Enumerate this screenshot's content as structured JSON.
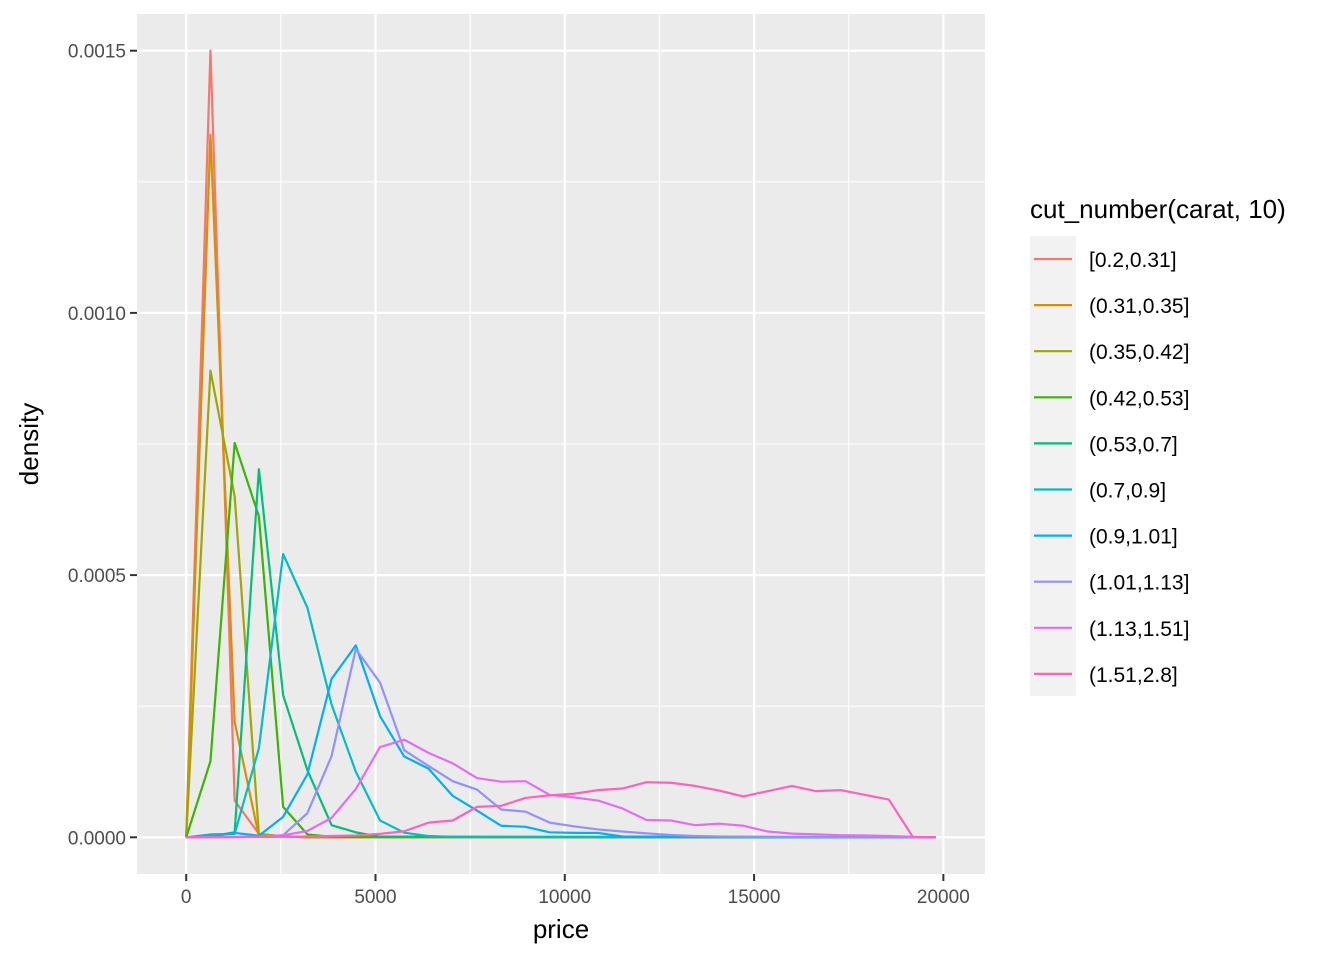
{
  "chart_data": {
    "type": "line",
    "xlabel": "price",
    "ylabel": "density",
    "xlim": [
      -1300,
      21100
    ],
    "ylim": [
      -7e-05,
      0.00157
    ],
    "x_ticks": [
      0,
      5000,
      10000,
      15000,
      20000
    ],
    "x_tick_labels": [
      "0",
      "5000",
      "10000",
      "15000",
      "20000"
    ],
    "y_ticks": [
      0,
      0.0005,
      0.001,
      0.0015
    ],
    "y_tick_labels": [
      "0.0000",
      "0.0005",
      "0.0010",
      "0.0015"
    ],
    "grid": true,
    "legend": {
      "title": "cut_number(carat, 10)",
      "position": "right"
    },
    "series": [
      {
        "name": "[0.2,0.31]",
        "color": "#F8766D",
        "x": [
          0,
          640,
          1280,
          1920,
          2560,
          3200,
          19800
        ],
        "y": [
          0,
          0.0015,
          7e-05,
          6.5e-06,
          1.5e-06,
          0,
          0
        ]
      },
      {
        "name": "(0.31,0.35]",
        "color": "#D89000",
        "x": [
          0,
          640,
          1280,
          1920,
          2560,
          3200,
          19800
        ],
        "y": [
          0,
          0.00134,
          0.00022,
          1.7e-06,
          1.8e-06,
          0,
          0
        ]
      },
      {
        "name": "(0.35,0.42]",
        "color": "#A3A500",
        "x": [
          0,
          640,
          1280,
          1920,
          2560,
          3200,
          19800
        ],
        "y": [
          0,
          0.00089,
          0.00065,
          6e-06,
          2e-06,
          0,
          0
        ]
      },
      {
        "name": "(0.42,0.53]",
        "color": "#39B600",
        "x": [
          0,
          640,
          1280,
          1920,
          2560,
          3200,
          3840,
          19800
        ],
        "y": [
          0,
          0.000145,
          0.000752,
          0.000612,
          5.8e-05,
          5.5e-06,
          1e-06,
          0
        ]
      },
      {
        "name": "(0.53,0.7]",
        "color": "#00BF7D",
        "x": [
          0,
          640,
          1280,
          1920,
          2560,
          3200,
          3840,
          4480,
          5120,
          19800
        ],
        "y": [
          0,
          1.8e-06,
          9.5e-06,
          0.000702,
          0.000271,
          0.000128,
          2.3e-05,
          9.4e-06,
          1.2e-06,
          0
        ]
      },
      {
        "name": "(0.7,0.9]",
        "color": "#00BFC4",
        "x": [
          0,
          640,
          1280,
          1920,
          2560,
          3200,
          3840,
          4480,
          5120,
          5760,
          6400,
          7040,
          19800
        ],
        "y": [
          0,
          5.5e-06,
          6.3e-06,
          0.00017,
          0.00054,
          0.000438,
          0.000253,
          0.000125,
          3.2e-05,
          8.8e-06,
          2.4e-06,
          6e-07,
          0
        ]
      },
      {
        "name": "(0.9,1.01]",
        "color": "#00B0F6",
        "x": [
          0,
          640,
          1280,
          1920,
          2560,
          3200,
          3840,
          4480,
          5120,
          5760,
          6400,
          7040,
          7680,
          8320,
          8960,
          9600,
          10240,
          10880,
          11520,
          19800
        ],
        "y": [
          0,
          1.1e-06,
          8.3e-06,
          3e-06,
          3.9e-05,
          0.00012,
          0.000302,
          0.000366,
          0.000231,
          0.000154,
          0.000131,
          7.9e-05,
          5.1e-05,
          2.2e-05,
          2e-05,
          9.5e-06,
          8.5e-06,
          8.3e-06,
          1.5e-06,
          0
        ]
      },
      {
        "name": "(1.01,1.13]",
        "color": "#9590FF",
        "x": [
          0,
          640,
          1280,
          1920,
          2560,
          3200,
          3840,
          4480,
          5120,
          5760,
          6400,
          7040,
          7680,
          8320,
          8960,
          9600,
          10240,
          10880,
          11520,
          12160,
          12800,
          13440,
          14080,
          14720,
          15360,
          19800
        ],
        "y": [
          0,
          3e-07,
          5e-07,
          1.2e-06,
          4e-06,
          4.6e-05,
          0.000155,
          0.000359,
          0.000295,
          0.000166,
          0.000136,
          0.000107,
          9.1e-05,
          5.3e-05,
          4.9e-05,
          2.8e-05,
          2.1e-05,
          1.5e-05,
          1.1e-05,
          7.5e-06,
          4.5e-06,
          2.5e-06,
          1.5e-06,
          1e-06,
          6e-07,
          0
        ]
      },
      {
        "name": "(1.13,1.51]",
        "color": "#E76BF3",
        "x": [
          0,
          640,
          1280,
          1920,
          2560,
          3200,
          3840,
          4480,
          5120,
          5760,
          6400,
          7040,
          7680,
          8320,
          8960,
          9600,
          10240,
          10880,
          11520,
          12160,
          12800,
          13440,
          14080,
          14720,
          15360,
          16000,
          16640,
          17280,
          17920,
          18560,
          19200,
          19800
        ],
        "y": [
          0,
          2e-07,
          4e-07,
          1.1e-06,
          3.7e-06,
          1.2e-05,
          3.7e-05,
          9.2e-05,
          0.000172,
          0.000186,
          0.000161,
          0.000141,
          0.000113,
          0.000106,
          0.000107,
          8.1e-05,
          7.6e-05,
          7e-05,
          5.5e-05,
          3.3e-05,
          3.2e-05,
          2.3e-05,
          2.6e-05,
          2.2e-05,
          1.1e-05,
          7e-06,
          5.5e-06,
          4e-06,
          3.5e-06,
          2.5e-06,
          8e-07,
          0
        ]
      },
      {
        "name": "(1.51,2.8]",
        "color": "#FF62BC",
        "x": [
          0,
          640,
          1280,
          1920,
          2560,
          3200,
          3840,
          4480,
          5120,
          5760,
          6400,
          7040,
          7680,
          8320,
          8960,
          9600,
          10240,
          10880,
          11520,
          12160,
          12800,
          13440,
          14080,
          14720,
          15360,
          16000,
          16640,
          17280,
          17920,
          18560,
          19200,
          19800
        ],
        "y": [
          0,
          2e-07,
          3e-07,
          6e-07,
          9e-07,
          1.6e-06,
          2.5e-06,
          3.5e-06,
          6.5e-06,
          1.15e-05,
          2.8e-05,
          3.2e-05,
          5.8e-05,
          6e-05,
          7.5e-05,
          8e-05,
          8.3e-05,
          9e-05,
          9.3e-05,
          0.000105,
          0.000104,
          9.8e-05,
          8.9e-05,
          7.8e-05,
          8.8e-05,
          9.8e-05,
          8.8e-05,
          9e-05,
          8.1e-05,
          7.2e-05,
          0,
          0
        ]
      }
    ]
  }
}
